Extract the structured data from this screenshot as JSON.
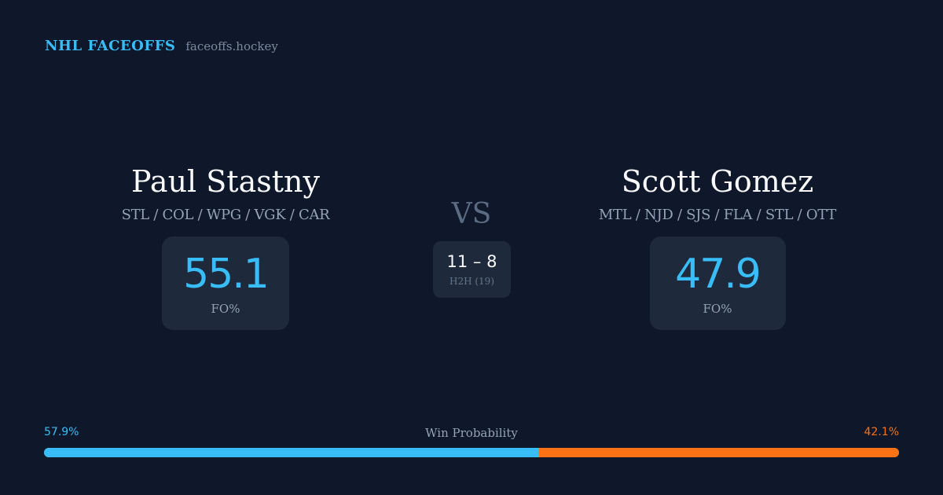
{
  "brand": {
    "title": "NHL FACEOFFS",
    "domain": "faceoffs.hockey"
  },
  "player_a": {
    "name": "Paul Stastny",
    "teams": "STL / COL / WPG / VGK / CAR",
    "stat_value": "55.1",
    "stat_label": "FO%"
  },
  "player_b": {
    "name": "Scott Gomez",
    "teams": "MTL / NJD / SJS / FLA / STL / OTT",
    "stat_value": "47.9",
    "stat_label": "FO%"
  },
  "matchup": {
    "vs_label": "VS",
    "h2h_score": "11 – 8",
    "h2h_label": "H2H (19)"
  },
  "win_probability": {
    "title": "Win Probability",
    "player_a_label": "57.9%",
    "player_b_label": "42.1%",
    "player_a_fraction": 0.579,
    "player_b_fraction": 0.421
  },
  "colors": {
    "background": "#0f172a",
    "card": "#1e293b",
    "accent_blue": "#38bdf8",
    "accent_orange": "#f97316",
    "muted_text": "#94a3b8"
  }
}
